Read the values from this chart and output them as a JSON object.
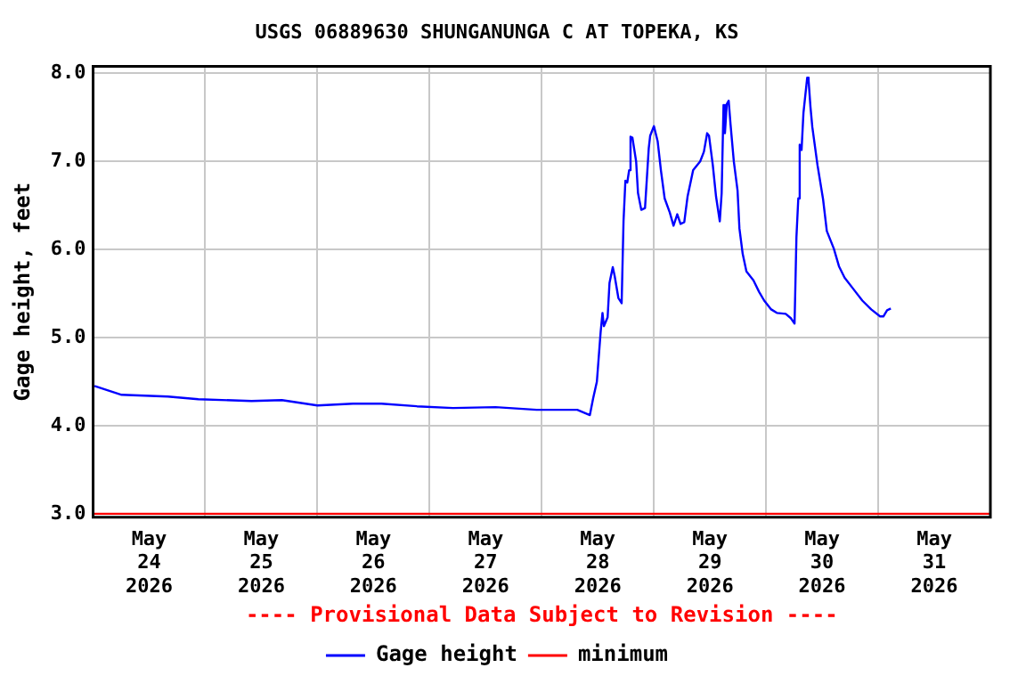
{
  "chart_data": {
    "type": "line",
    "title": "USGS 06889630 SHUNGANUNGA C AT TOPEKA, KS",
    "ylabel": "Gage height, feet",
    "annotations": [
      "---- Provisional Data Subject to Revision ----"
    ],
    "series": [
      {
        "name": "Gage height",
        "color": "#0000ff",
        "x": [
          "2026-05-24T00:18",
          "2026-05-24T06:06",
          "2026-05-24T16:00",
          "2026-05-24T22:30",
          "2026-05-25T09:54",
          "2026-05-25T16:24",
          "2026-05-26T00:00",
          "2026-05-26T07:36",
          "2026-05-26T13:42",
          "2026-05-26T21:18",
          "2026-05-27T05:00",
          "2026-05-27T14:06",
          "2026-05-27T22:54",
          "2026-05-28T06:30",
          "2026-05-28T07:36",
          "2026-05-28T10:18",
          "2026-05-28T11:00",
          "2026-05-28T11:48",
          "2026-05-28T12:36",
          "2026-05-28T13:00",
          "2026-05-28T13:18",
          "2026-05-28T14:06",
          "2026-05-28T14:30",
          "2026-05-28T15:12",
          "2026-05-28T15:36",
          "2026-05-28T16:24",
          "2026-05-28T17:06",
          "2026-05-28T17:30",
          "2026-05-28T17:54",
          "2026-05-28T18:18",
          "2026-05-28T18:42",
          "2026-05-28T19:00",
          "2026-05-28T19:24",
          "2026-05-28T20:12",
          "2026-05-28T20:36",
          "2026-05-28T21:18",
          "2026-05-28T22:06",
          "2026-05-28T22:54",
          "2026-05-28T23:12",
          "2026-05-29T00:00",
          "2026-05-29T00:48",
          "2026-05-29T01:30",
          "2026-05-29T02:18",
          "2026-05-29T03:24",
          "2026-05-29T04:12",
          "2026-05-29T05:00",
          "2026-05-29T05:42",
          "2026-05-29T06:30",
          "2026-05-29T07:12",
          "2026-05-29T08:24",
          "2026-05-29T09:54",
          "2026-05-29T10:42",
          "2026-05-29T11:24",
          "2026-05-29T11:48",
          "2026-05-29T12:36",
          "2026-05-29T13:18",
          "2026-05-29T14:06",
          "2026-05-29T14:30",
          "2026-05-29T14:54",
          "2026-05-29T15:12",
          "2026-05-29T15:36",
          "2026-05-29T16:00",
          "2026-05-29T16:24",
          "2026-05-29T17:06",
          "2026-05-29T17:54",
          "2026-05-29T18:18",
          "2026-05-29T19:00",
          "2026-05-29T19:48",
          "2026-05-29T21:18",
          "2026-05-29T22:30",
          "2026-05-29T23:36",
          "2026-05-30T01:06",
          "2026-05-30T02:18",
          "2026-05-30T04:12",
          "2026-05-30T05:18",
          "2026-05-30T06:06",
          "2026-05-30T06:30",
          "2026-05-30T06:54",
          "2026-05-30T07:12",
          "2026-05-30T07:36",
          "2026-05-30T08:00",
          "2026-05-30T08:48",
          "2026-05-30T09:06",
          "2026-05-30T09:30",
          "2026-05-30T09:54",
          "2026-05-30T11:00",
          "2026-05-30T12:12",
          "2026-05-30T13:00",
          "2026-05-30T14:30",
          "2026-05-30T15:36",
          "2026-05-30T16:48",
          "2026-05-30T18:42",
          "2026-05-30T20:36",
          "2026-05-30T22:30",
          "2026-05-31T00:24",
          "2026-05-31T01:06",
          "2026-05-31T01:54",
          "2026-05-31T02:42"
        ],
        "values": [
          4.45,
          4.35,
          4.33,
          4.3,
          4.28,
          4.29,
          4.23,
          4.25,
          4.25,
          4.22,
          4.2,
          4.21,
          4.18,
          4.18,
          4.18,
          4.12,
          4.31,
          4.5,
          5.06,
          5.28,
          5.13,
          5.23,
          5.62,
          5.8,
          5.7,
          5.45,
          5.39,
          6.32,
          6.78,
          6.76,
          6.9,
          7.28,
          7.27,
          7.0,
          6.64,
          6.45,
          6.47,
          7.15,
          7.29,
          7.4,
          7.23,
          6.9,
          6.58,
          6.42,
          6.27,
          6.4,
          6.29,
          6.31,
          6.6,
          6.9,
          7.0,
          7.11,
          7.32,
          7.29,
          6.96,
          6.6,
          6.32,
          6.64,
          7.64,
          7.32,
          7.65,
          7.69,
          7.42,
          7.0,
          6.67,
          6.24,
          5.95,
          5.75,
          5.65,
          5.52,
          5.42,
          5.32,
          5.28,
          5.27,
          5.22,
          5.16,
          6.14,
          6.58,
          7.19,
          7.13,
          7.55,
          7.95,
          7.92,
          7.62,
          7.39,
          6.96,
          6.57,
          6.21,
          6.01,
          5.81,
          5.68,
          5.55,
          5.42,
          5.32,
          5.24,
          5.24,
          5.31,
          5.33
        ]
      },
      {
        "name": "minimum",
        "color": "#ff0000",
        "x": [
          "2026-05-24T00:00",
          "2026-06-01T00:00"
        ],
        "values": [
          3.0,
          3.0
        ]
      }
    ],
    "xlim": [
      "2026-05-24T00:00",
      "2026-06-01T00:00"
    ],
    "xticks": [
      {
        "value": "2026-05-24T00:00",
        "label": null
      },
      {
        "value": "2026-05-24T12:00",
        "label": "May 24 2026"
      },
      {
        "value": "2026-05-25T00:00",
        "label": null
      },
      {
        "value": "2026-05-25T12:00",
        "label": "May 25 2026"
      },
      {
        "value": "2026-05-26T00:00",
        "label": null
      },
      {
        "value": "2026-05-26T12:00",
        "label": "May 26 2026"
      },
      {
        "value": "2026-05-27T00:00",
        "label": null
      },
      {
        "value": "2026-05-27T12:00",
        "label": "May 27 2026"
      },
      {
        "value": "2026-05-28T00:00",
        "label": null
      },
      {
        "value": "2026-05-28T12:00",
        "label": "May 28 2026"
      },
      {
        "value": "2026-05-29T00:00",
        "label": null
      },
      {
        "value": "2026-05-29T12:00",
        "label": "May 29 2026"
      },
      {
        "value": "2026-05-30T00:00",
        "label": null
      },
      {
        "value": "2026-05-30T12:00",
        "label": "May 30 2026"
      },
      {
        "value": "2026-05-31T00:00",
        "label": null
      },
      {
        "value": "2026-05-31T12:00",
        "label": "May 31 2026"
      },
      {
        "value": "2026-06-01T00:00",
        "label": null
      }
    ],
    "ylim": [
      2.96,
      8.08
    ],
    "yticks": [
      {
        "value": 3,
        "label": "3.0"
      },
      {
        "value": 4,
        "label": "4.0"
      },
      {
        "value": 5,
        "label": "5.0"
      },
      {
        "value": 6,
        "label": "6.0"
      },
      {
        "value": 7,
        "label": "7.0"
      },
      {
        "value": 8,
        "label": "8.0"
      }
    ],
    "grid": true,
    "legend": "bottom",
    "marker": "none",
    "line_style": "solid"
  }
}
